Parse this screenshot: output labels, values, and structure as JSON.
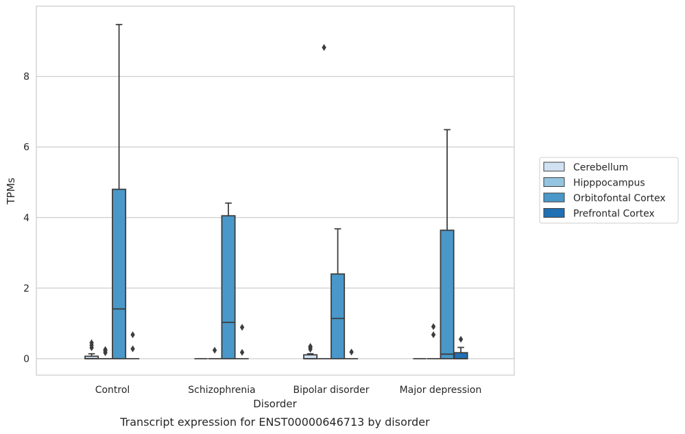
{
  "chart_data": {
    "type": "box",
    "caption": "Transcript expression for ENST00000646713 by disorder",
    "xlabel": "Disorder",
    "ylabel": "TPMs",
    "ylim": [
      -0.45,
      9.9
    ],
    "yticks": [
      0,
      2,
      4,
      6,
      8
    ],
    "grid": "horizontal",
    "legend_position": "right",
    "categories": [
      "Control",
      "Schizophrenia",
      "Bipolar disorder",
      "Major depression"
    ],
    "series": [
      {
        "name": "Cerebellum",
        "color": "#d0e1f2",
        "boxes": [
          {
            "min": 0,
            "q1": 0,
            "median": 0,
            "q3": 0.07,
            "max": 0.14,
            "outliers": [
              0.31,
              0.38,
              0.45
            ]
          },
          {
            "min": 0,
            "q1": 0,
            "median": 0,
            "q3": 0,
            "max": 0,
            "outliers": []
          },
          {
            "min": 0,
            "q1": 0,
            "median": 0,
            "q3": 0.11,
            "max": 0.14,
            "outliers": [
              0.27,
              0.32,
              0.35
            ]
          },
          {
            "min": 0,
            "q1": 0,
            "median": 0,
            "q3": 0,
            "max": 0,
            "outliers": []
          }
        ]
      },
      {
        "name": "Hipppocampus",
        "color": "#94c4df",
        "boxes": [
          {
            "min": 0,
            "q1": 0,
            "median": 0,
            "q3": 0,
            "max": 0,
            "outliers": [
              0.17,
              0.22,
              0.26
            ]
          },
          {
            "min": 0,
            "q1": 0,
            "median": 0,
            "q3": 0,
            "max": 0,
            "outliers": [
              0.24
            ]
          },
          {
            "min": 0,
            "q1": 0,
            "median": 0,
            "q3": 0,
            "max": 0,
            "outliers": [
              8.82
            ]
          },
          {
            "min": 0,
            "q1": 0,
            "median": 0,
            "q3": 0,
            "max": 0,
            "outliers": [
              0.68,
              0.91
            ]
          }
        ]
      },
      {
        "name": "Orbitofontal Cortex",
        "color": "#4a98c9",
        "boxes": [
          {
            "min": 0,
            "q1": 0,
            "median": 1.41,
            "q3": 4.8,
            "max": 9.47,
            "outliers": []
          },
          {
            "min": 0,
            "q1": 0,
            "median": 1.03,
            "q3": 4.05,
            "max": 4.41,
            "outliers": []
          },
          {
            "min": 0,
            "q1": 0,
            "median": 1.14,
            "q3": 2.4,
            "max": 3.68,
            "outliers": []
          },
          {
            "min": 0,
            "q1": 0,
            "median": 0.13,
            "q3": 3.64,
            "max": 6.49,
            "outliers": []
          }
        ]
      },
      {
        "name": "Prefrontal Cortex",
        "color": "#2070b4",
        "boxes": [
          {
            "min": 0,
            "q1": 0,
            "median": 0,
            "q3": 0,
            "max": 0,
            "outliers": [
              0.28,
              0.68
            ]
          },
          {
            "min": 0,
            "q1": 0,
            "median": 0,
            "q3": 0,
            "max": 0,
            "outliers": [
              0.18,
              0.89
            ]
          },
          {
            "min": 0,
            "q1": 0,
            "median": 0,
            "q3": 0,
            "max": 0,
            "outliers": [
              0.19
            ]
          },
          {
            "min": 0,
            "q1": 0,
            "median": 0,
            "q3": 0.17,
            "max": 0.32,
            "outliers": [
              0.55
            ]
          }
        ]
      }
    ]
  }
}
